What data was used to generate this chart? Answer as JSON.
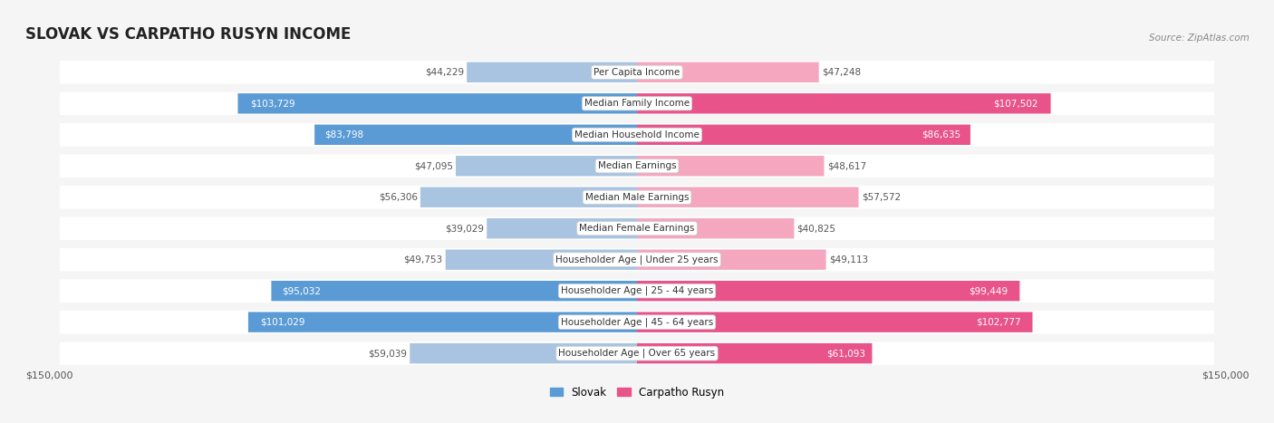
{
  "title": "SLOVAK VS CARPATHO RUSYN INCOME",
  "source": "Source: ZipAtlas.com",
  "categories": [
    "Per Capita Income",
    "Median Family Income",
    "Median Household Income",
    "Median Earnings",
    "Median Male Earnings",
    "Median Female Earnings",
    "Householder Age | Under 25 years",
    "Householder Age | 25 - 44 years",
    "Householder Age | 45 - 64 years",
    "Householder Age | Over 65 years"
  ],
  "slovak_values": [
    44229,
    103729,
    83798,
    47095,
    56306,
    39029,
    49753,
    95032,
    101029,
    59039
  ],
  "rusyn_values": [
    47248,
    107502,
    86635,
    48617,
    57572,
    40825,
    49113,
    99449,
    102777,
    61093
  ],
  "slovak_labels": [
    "$44,229",
    "$103,729",
    "$83,798",
    "$47,095",
    "$56,306",
    "$39,029",
    "$49,753",
    "$95,032",
    "$101,029",
    "$59,039"
  ],
  "rusyn_labels": [
    "$47,248",
    "$107,502",
    "$86,635",
    "$48,617",
    "$57,572",
    "$40,825",
    "$49,113",
    "$99,449",
    "$102,777",
    "$61,093"
  ],
  "slovak_color_light": "#a8c4e0",
  "slovak_color_dark": "#5b9bd5",
  "rusyn_color_light": "#f4a7bf",
  "rusyn_color_dark": "#e8538a",
  "max_value": 150000,
  "legend_slovak": "Slovak",
  "legend_rusyn": "Carpatho Rusyn",
  "background_color": "#f5f5f5",
  "row_bg_color": "#ffffff",
  "axis_label_left": "$150,000",
  "axis_label_right": "$150,000"
}
